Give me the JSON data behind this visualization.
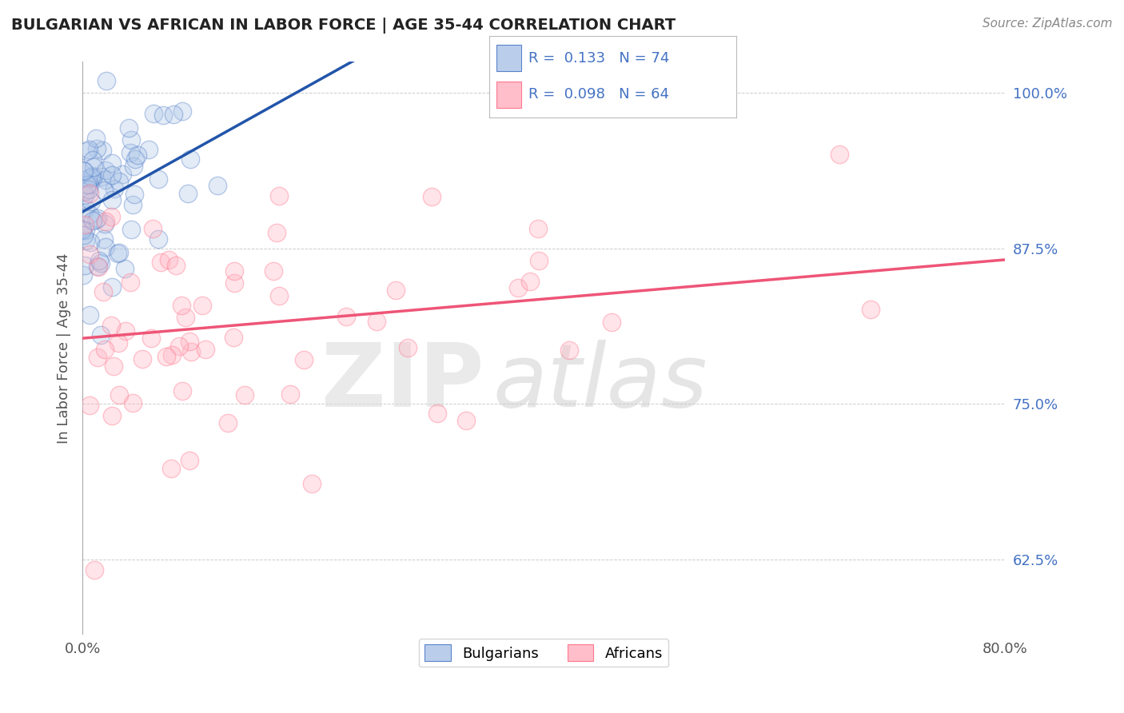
{
  "title": "BULGARIAN VS AFRICAN IN LABOR FORCE | AGE 35-44 CORRELATION CHART",
  "source_text": "Source: ZipAtlas.com",
  "ylabel": "In Labor Force | Age 35-44",
  "xlim": [
    0.0,
    0.8
  ],
  "ylim": [
    0.565,
    1.025
  ],
  "xtick_labels": [
    "0.0%",
    "80.0%"
  ],
  "xtick_vals": [
    0.0,
    0.8
  ],
  "ytick_labels_right": [
    "62.5%",
    "75.0%",
    "87.5%",
    "100.0%"
  ],
  "ytick_vals_right": [
    0.625,
    0.75,
    0.875,
    1.0
  ],
  "bulgarian_R": 0.133,
  "bulgarian_N": 74,
  "african_R": 0.098,
  "african_N": 64,
  "blue_fill": "#AEC6E8",
  "blue_edge": "#4472C4",
  "pink_fill": "#FFB3C1",
  "pink_edge": "#FF6680",
  "trend_blue": "#2255AA",
  "trend_pink": "#EE5577",
  "background_color": "#FFFFFF",
  "grid_color": "#CCCCCC",
  "legend_labels": [
    "Bulgarians",
    "Africans"
  ],
  "title_color": "#222222",
  "source_color": "#888888",
  "seed": 99,
  "watermark_zip_color": "#DDDDDD",
  "watermark_atlas_color": "#CCCCCC"
}
